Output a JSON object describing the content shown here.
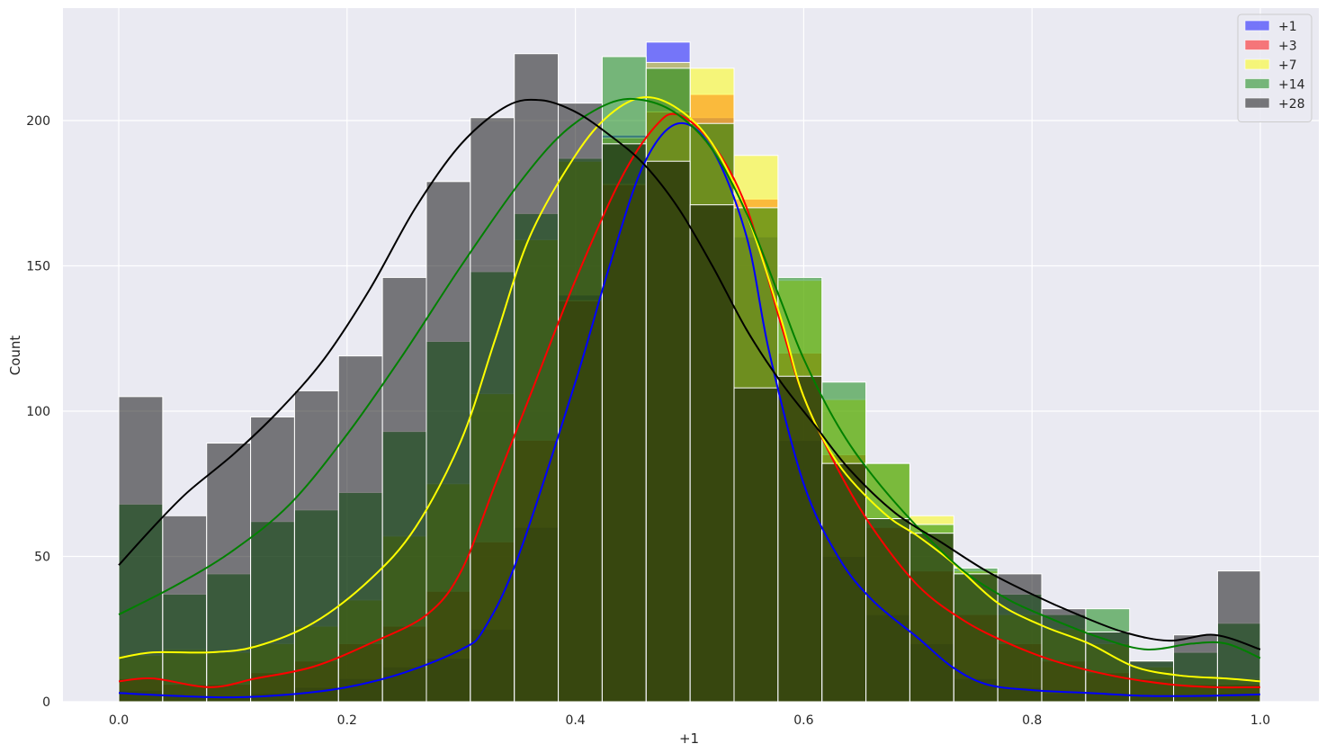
{
  "chart_data": {
    "type": "histogram",
    "title": "",
    "xlabel": "+1",
    "ylabel": "Count",
    "xlim": [
      -0.05,
      1.05
    ],
    "ylim": [
      0,
      238
    ],
    "xticks": [
      0.0,
      0.2,
      0.4,
      0.6,
      0.8,
      1.0
    ],
    "xtick_labels": [
      "0.0",
      "0.2",
      "0.4",
      "0.6",
      "0.8",
      "1.0"
    ],
    "yticks": [
      0,
      50,
      100,
      150,
      200
    ],
    "ytick_labels": [
      "0",
      "50",
      "100",
      "150",
      "200"
    ],
    "grid": true,
    "legend_position": "top-right",
    "series": [
      {
        "name": "+1",
        "color": "#0000ff",
        "bin_width": 0.0385,
        "bins_start": [
          0.0,
          0.0385,
          0.077,
          0.1155,
          0.154,
          0.1925,
          0.231,
          0.2695,
          0.308,
          0.3465,
          0.385,
          0.4235,
          0.462,
          0.5005,
          0.539,
          0.5775,
          0.616,
          0.6545,
          0.693,
          0.7315,
          0.77,
          0.8085,
          0.847,
          0.8855,
          0.924,
          0.9625
        ],
        "counts": [
          4,
          2,
          2,
          3,
          5,
          8,
          12,
          15,
          25,
          60,
          140,
          195,
          227,
          201,
          160,
          90,
          50,
          30,
          20,
          8,
          5,
          3,
          3,
          2,
          2,
          3
        ],
        "kde": [
          [
            0.0,
            3
          ],
          [
            0.05,
            2
          ],
          [
            0.1,
            1.5
          ],
          [
            0.15,
            2.5
          ],
          [
            0.2,
            5
          ],
          [
            0.25,
            10
          ],
          [
            0.3,
            18
          ],
          [
            0.32,
            25
          ],
          [
            0.35,
            50
          ],
          [
            0.4,
            110
          ],
          [
            0.43,
            150
          ],
          [
            0.46,
            185
          ],
          [
            0.49,
            199
          ],
          [
            0.52,
            190
          ],
          [
            0.55,
            160
          ],
          [
            0.57,
            120
          ],
          [
            0.6,
            75
          ],
          [
            0.63,
            50
          ],
          [
            0.66,
            35
          ],
          [
            0.7,
            22
          ],
          [
            0.73,
            12
          ],
          [
            0.76,
            6
          ],
          [
            0.8,
            4
          ],
          [
            0.85,
            3
          ],
          [
            0.9,
            2
          ],
          [
            0.95,
            2
          ],
          [
            1.0,
            2.5
          ]
        ]
      },
      {
        "name": "+3",
        "color": "#ff0000",
        "bin_width": 0.0385,
        "bins_start": [
          0.0,
          0.0385,
          0.077,
          0.1155,
          0.154,
          0.1925,
          0.231,
          0.2695,
          0.308,
          0.3465,
          0.385,
          0.4235,
          0.462,
          0.5005,
          0.539,
          0.5775,
          0.616,
          0.6545,
          0.693,
          0.7315,
          0.77,
          0.8085,
          0.847,
          0.8855,
          0.924,
          0.9625
        ],
        "counts": [
          8,
          6,
          6,
          10,
          14,
          20,
          26,
          38,
          55,
          90,
          138,
          178,
          203,
          209,
          173,
          120,
          85,
          60,
          45,
          30,
          20,
          14,
          10,
          8,
          6,
          6
        ],
        "kde": [
          [
            0.0,
            7
          ],
          [
            0.03,
            8
          ],
          [
            0.08,
            5
          ],
          [
            0.12,
            8
          ],
          [
            0.17,
            12
          ],
          [
            0.22,
            20
          ],
          [
            0.27,
            30
          ],
          [
            0.3,
            45
          ],
          [
            0.33,
            75
          ],
          [
            0.36,
            105
          ],
          [
            0.4,
            145
          ],
          [
            0.44,
            180
          ],
          [
            0.47,
            198
          ],
          [
            0.49,
            202
          ],
          [
            0.52,
            192
          ],
          [
            0.55,
            170
          ],
          [
            0.58,
            130
          ],
          [
            0.6,
            105
          ],
          [
            0.63,
            80
          ],
          [
            0.66,
            60
          ],
          [
            0.7,
            40
          ],
          [
            0.74,
            28
          ],
          [
            0.78,
            20
          ],
          [
            0.82,
            14
          ],
          [
            0.87,
            9
          ],
          [
            0.92,
            6
          ],
          [
            0.96,
            5
          ],
          [
            1.0,
            5
          ]
        ]
      },
      {
        "name": "+7",
        "color": "#ffff00",
        "bin_width": 0.0385,
        "bins_start": [
          0.0,
          0.0385,
          0.077,
          0.1155,
          0.154,
          0.1925,
          0.231,
          0.2695,
          0.308,
          0.3465,
          0.385,
          0.4235,
          0.462,
          0.5005,
          0.539,
          0.5775,
          0.616,
          0.6545,
          0.693,
          0.7315,
          0.77,
          0.8085,
          0.847,
          0.8855,
          0.924,
          0.9625
        ],
        "counts": [
          16,
          18,
          17,
          20,
          26,
          35,
          57,
          75,
          106,
          159,
          186,
          194,
          220,
          218,
          188,
          145,
          104,
          82,
          64,
          45,
          30,
          25,
          20,
          12,
          9,
          8
        ],
        "kde": [
          [
            0.0,
            15
          ],
          [
            0.03,
            17
          ],
          [
            0.08,
            17
          ],
          [
            0.12,
            19
          ],
          [
            0.17,
            27
          ],
          [
            0.22,
            42
          ],
          [
            0.26,
            60
          ],
          [
            0.3,
            90
          ],
          [
            0.33,
            125
          ],
          [
            0.36,
            160
          ],
          [
            0.4,
            188
          ],
          [
            0.43,
            202
          ],
          [
            0.46,
            208
          ],
          [
            0.49,
            204
          ],
          [
            0.52,
            192
          ],
          [
            0.55,
            168
          ],
          [
            0.58,
            132
          ],
          [
            0.6,
            105
          ],
          [
            0.63,
            82
          ],
          [
            0.67,
            65
          ],
          [
            0.7,
            57
          ],
          [
            0.73,
            48
          ],
          [
            0.77,
            34
          ],
          [
            0.81,
            26
          ],
          [
            0.85,
            20
          ],
          [
            0.89,
            12
          ],
          [
            0.93,
            9
          ],
          [
            0.97,
            8
          ],
          [
            1.0,
            7
          ]
        ]
      },
      {
        "name": "+14",
        "color": "#008000",
        "bin_width": 0.0385,
        "bins_start": [
          0.0,
          0.0385,
          0.077,
          0.1155,
          0.154,
          0.1925,
          0.231,
          0.2695,
          0.308,
          0.3465,
          0.385,
          0.4235,
          0.462,
          0.5005,
          0.539,
          0.5775,
          0.616,
          0.6545,
          0.693,
          0.7315,
          0.77,
          0.8085,
          0.847,
          0.8855,
          0.924,
          0.9625
        ],
        "counts": [
          68,
          37,
          44,
          62,
          66,
          72,
          93,
          124,
          148,
          168,
          187,
          222,
          218,
          199,
          170,
          146,
          110,
          82,
          61,
          46,
          37,
          30,
          32,
          14,
          17,
          27
        ],
        "kde": [
          [
            0.0,
            30
          ],
          [
            0.05,
            40
          ],
          [
            0.1,
            52
          ],
          [
            0.15,
            68
          ],
          [
            0.2,
            92
          ],
          [
            0.25,
            120
          ],
          [
            0.3,
            150
          ],
          [
            0.35,
            178
          ],
          [
            0.39,
            196
          ],
          [
            0.43,
            206
          ],
          [
            0.46,
            207
          ],
          [
            0.49,
            202
          ],
          [
            0.52,
            190
          ],
          [
            0.55,
            168
          ],
          [
            0.58,
            138
          ],
          [
            0.6,
            118
          ],
          [
            0.63,
            95
          ],
          [
            0.66,
            78
          ],
          [
            0.7,
            60
          ],
          [
            0.74,
            45
          ],
          [
            0.78,
            35
          ],
          [
            0.82,
            28
          ],
          [
            0.86,
            22
          ],
          [
            0.9,
            18
          ],
          [
            0.94,
            20
          ],
          [
            0.97,
            20
          ],
          [
            1.0,
            15
          ]
        ]
      },
      {
        "name": "+28",
        "color": "#000000",
        "bin_width": 0.0385,
        "bins_start": [
          0.0,
          0.0385,
          0.077,
          0.1155,
          0.154,
          0.1925,
          0.231,
          0.2695,
          0.308,
          0.3465,
          0.385,
          0.4235,
          0.462,
          0.5005,
          0.539,
          0.5775,
          0.616,
          0.6545,
          0.693,
          0.7315,
          0.77,
          0.8085,
          0.847,
          0.8855,
          0.924,
          0.9625
        ],
        "counts": [
          105,
          64,
          89,
          98,
          107,
          119,
          146,
          179,
          201,
          223,
          206,
          192,
          186,
          171,
          108,
          112,
          82,
          63,
          58,
          44,
          44,
          32,
          24,
          14,
          23,
          45
        ],
        "kde": [
          [
            0.0,
            47
          ],
          [
            0.03,
            60
          ],
          [
            0.06,
            72
          ],
          [
            0.1,
            85
          ],
          [
            0.14,
            100
          ],
          [
            0.18,
            118
          ],
          [
            0.22,
            142
          ],
          [
            0.26,
            170
          ],
          [
            0.3,
            192
          ],
          [
            0.34,
            205
          ],
          [
            0.37,
            207
          ],
          [
            0.4,
            203
          ],
          [
            0.43,
            195
          ],
          [
            0.46,
            185
          ],
          [
            0.49,
            170
          ],
          [
            0.52,
            150
          ],
          [
            0.55,
            128
          ],
          [
            0.58,
            110
          ],
          [
            0.61,
            95
          ],
          [
            0.64,
            80
          ],
          [
            0.68,
            65
          ],
          [
            0.72,
            55
          ],
          [
            0.76,
            45
          ],
          [
            0.8,
            37
          ],
          [
            0.84,
            30
          ],
          [
            0.88,
            24
          ],
          [
            0.92,
            21
          ],
          [
            0.96,
            23
          ],
          [
            1.0,
            18
          ]
        ]
      }
    ]
  }
}
